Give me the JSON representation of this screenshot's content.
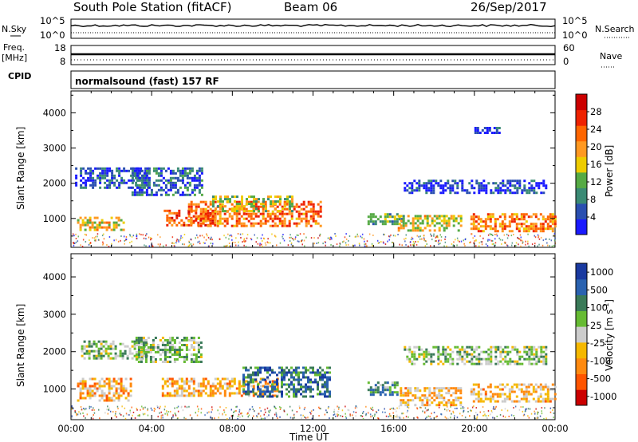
{
  "header": {
    "station": "South Pole Station (fitACF)",
    "beam": "Beam 06",
    "date": "26/Sep/2017"
  },
  "strip": {
    "left_labels": {
      "nsky": "N.Sky",
      "freq_line1": "Freq.",
      "freq_line2": "[MHz]",
      "cpid": "CPID"
    },
    "right_labels": {
      "nsearch": "N.Search",
      "nave": "Nave"
    },
    "nsky_ticks": [
      "10^5",
      "10^0"
    ],
    "nsearch_ticks": [
      "10^5",
      "10^0"
    ],
    "freq_ticks": [
      "18",
      "8"
    ],
    "nave_ticks": [
      "60",
      "0"
    ],
    "cpid_text": "normalsound (fast) 157 RF"
  },
  "colors": {
    "power_scale": [
      "#1a1aff",
      "#2a4fb0",
      "#3a8a74",
      "#55aa44",
      "#eecc00",
      "#ff9922",
      "#ff6600",
      "#ee2200",
      "#cc0000"
    ],
    "velocity_scale": [
      "#1a3aa0",
      "#2a62b0",
      "#3a7a58",
      "#66bb33",
      "#cccccc",
      "#f5b800",
      "#ff8a10",
      "#ff5500",
      "#cc0000"
    ]
  },
  "chart_data": [
    {
      "type": "heatmap",
      "quantity": "power",
      "xlabel": "Time UT",
      "ylabel": "Slant Range [km]",
      "x_ticks": [
        "00:00",
        "04:00",
        "08:00",
        "12:00",
        "16:00",
        "20:00",
        "00:00"
      ],
      "y_ticks": [
        1000,
        2000,
        3000,
        4000
      ],
      "xlim_hours": [
        0,
        24
      ],
      "ylim_km": [
        180,
        4620
      ],
      "colorbar": {
        "label": "Power [dB]",
        "ticks": [
          "4",
          "8",
          "12",
          "16",
          "20",
          "24",
          "28"
        ],
        "range": [
          0,
          32
        ]
      },
      "echo_regions": [
        {
          "t": [
            0.3,
            2.6
          ],
          "r": [
            700,
            1050
          ],
          "level": 0.55
        },
        {
          "t": [
            0.2,
            3.8
          ],
          "r": [
            1900,
            2450
          ],
          "level": 0.15
        },
        {
          "t": [
            3.0,
            6.5
          ],
          "r": [
            1650,
            2450
          ],
          "level": 0.2
        },
        {
          "t": [
            4.6,
            7.2
          ],
          "r": [
            800,
            1250
          ],
          "level": 0.75
        },
        {
          "t": [
            5.8,
            12.4
          ],
          "r": [
            800,
            1500
          ],
          "level": 0.7
        },
        {
          "t": [
            7.0,
            11.0
          ],
          "r": [
            1200,
            1650
          ],
          "level": 0.45
        },
        {
          "t": [
            14.7,
            16.4
          ],
          "r": [
            850,
            1150
          ],
          "level": 0.35
        },
        {
          "t": [
            16.2,
            19.3
          ],
          "r": [
            650,
            1100
          ],
          "level": 0.5
        },
        {
          "t": [
            19.8,
            24.0
          ],
          "r": [
            650,
            1150
          ],
          "level": 0.65
        },
        {
          "t": [
            16.5,
            23.6
          ],
          "r": [
            1700,
            2100
          ],
          "level": 0.12
        },
        {
          "t": [
            20.0,
            21.2
          ],
          "r": [
            3400,
            3600
          ],
          "level": 0.12
        }
      ]
    },
    {
      "type": "heatmap",
      "quantity": "velocity",
      "xlabel": "Time UT",
      "ylabel": "Slant Range [km]",
      "x_ticks": [
        "00:00",
        "04:00",
        "08:00",
        "12:00",
        "16:00",
        "20:00",
        "00:00"
      ],
      "y_ticks": [
        1000,
        2000,
        3000,
        4000
      ],
      "xlim_hours": [
        0,
        24
      ],
      "ylim_km": [
        180,
        4620
      ],
      "colorbar": {
        "label": "Velocity [m s",
        "label_sup": "-1",
        "label_end": "]",
        "ticks": [
          "1000",
          "500",
          "100",
          "25",
          "-25",
          "-100",
          "-500",
          "-1000"
        ]
      },
      "echo_regions": [
        {
          "t": [
            0.3,
            3.0
          ],
          "r": [
            700,
            1300
          ],
          "level": 0.65
        },
        {
          "t": [
            0.5,
            3.8
          ],
          "r": [
            1850,
            2300
          ],
          "level": 0.42
        },
        {
          "t": [
            3.2,
            6.5
          ],
          "r": [
            1700,
            2400
          ],
          "level": 0.42
        },
        {
          "t": [
            4.5,
            10.2
          ],
          "r": [
            800,
            1300
          ],
          "level": 0.65
        },
        {
          "t": [
            8.5,
            12.8
          ],
          "r": [
            800,
            1600
          ],
          "level": 0.2
        },
        {
          "t": [
            14.7,
            16.2
          ],
          "r": [
            850,
            1200
          ],
          "level": 0.3
        },
        {
          "t": [
            16.3,
            19.3
          ],
          "r": [
            600,
            1050
          ],
          "level": 0.62
        },
        {
          "t": [
            19.8,
            24.0
          ],
          "r": [
            650,
            1150
          ],
          "level": 0.62
        },
        {
          "t": [
            16.5,
            23.6
          ],
          "r": [
            1700,
            2150
          ],
          "level": 0.42
        }
      ]
    }
  ]
}
